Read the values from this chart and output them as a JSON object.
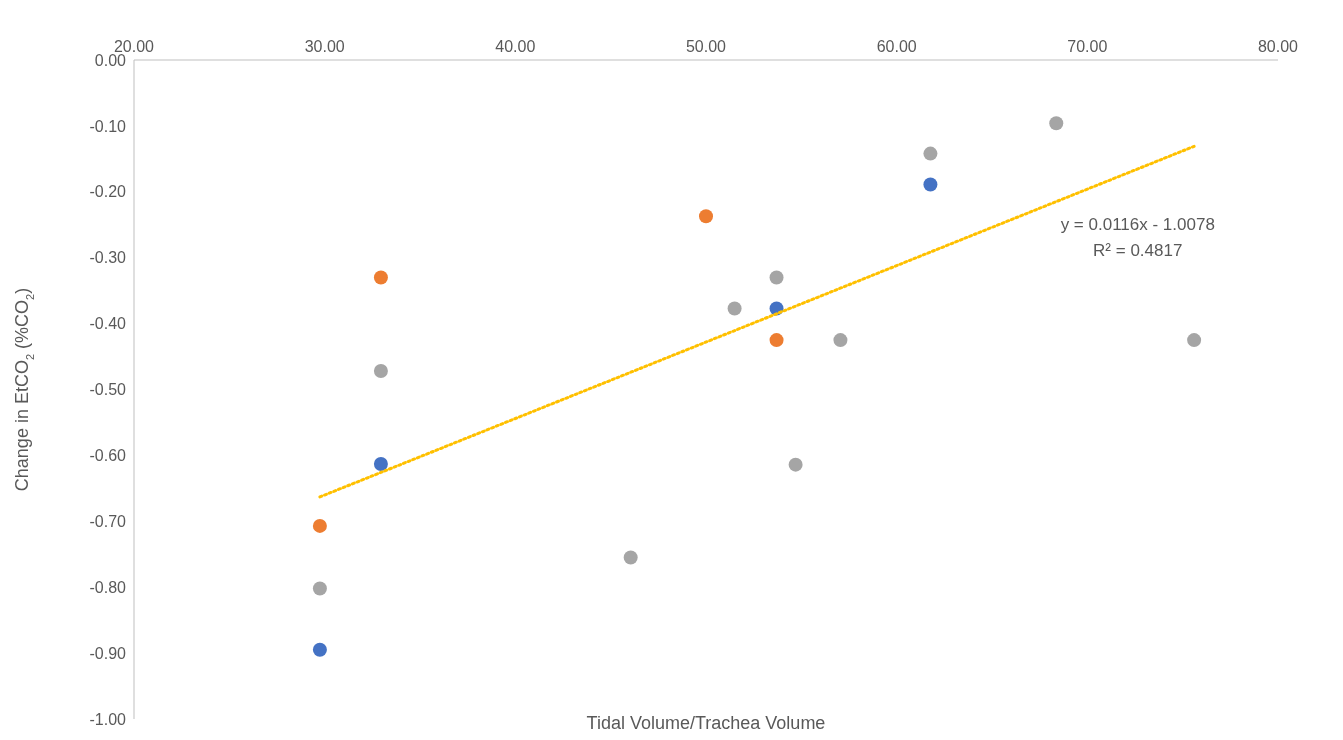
{
  "chart_data": {
    "type": "scatter",
    "xlabel": "Tidal Volume/Trachea Volume",
    "ylabel": "Change in EtCO$_{2}$ (%CO$_{2}$)",
    "xlim": [
      20,
      80
    ],
    "xticks": [
      {
        "value": 20,
        "label": "20.00"
      },
      {
        "value": 30,
        "label": "30.00"
      },
      {
        "value": 40,
        "label": "40.00"
      },
      {
        "value": 50,
        "label": "50.00"
      },
      {
        "value": 60,
        "label": "60.00"
      },
      {
        "value": 70,
        "label": "70.00"
      },
      {
        "value": 80,
        "label": "80.00"
      }
    ],
    "ylim": [
      -1,
      0
    ],
    "yticks": [
      {
        "value": 0,
        "label": "0.00"
      },
      {
        "value": -0.1,
        "label": "-0.10"
      },
      {
        "value": -0.2,
        "label": "-0.20"
      },
      {
        "value": -0.3,
        "label": "-0.30"
      },
      {
        "value": -0.4,
        "label": "-0.40"
      },
      {
        "value": -0.5,
        "label": "-0.50"
      },
      {
        "value": -0.6,
        "label": "-0.60"
      },
      {
        "value": -0.7,
        "label": "-0.70"
      },
      {
        "value": -0.8,
        "label": "-0.80"
      },
      {
        "value": -0.9,
        "label": "-0.90"
      },
      {
        "value": -1,
        "label": "-1.00"
      }
    ],
    "grid": false,
    "legend": false,
    "marker": "circle",
    "series": [
      {
        "color": "#4472c4",
        "x": [
          29.75,
          32.95,
          53.7,
          61.77
        ],
        "values": [
          -0.895,
          -0.613,
          -0.377,
          -0.189
        ]
      },
      {
        "color": "#ed7d31",
        "x": [
          29.75,
          32.95,
          50.0,
          53.7
        ],
        "values": [
          -0.707,
          -0.33,
          -0.237,
          -0.425
        ]
      },
      {
        "color": "#a5a5a5",
        "x": [
          29.75,
          32.95,
          46.05,
          51.5,
          53.7,
          54.7,
          57.05,
          61.77,
          68.37,
          75.6
        ],
        "values": [
          -0.802,
          -0.472,
          -0.755,
          -0.377,
          -0.33,
          -0.614,
          -0.425,
          -0.142,
          -0.096,
          -0.425
        ]
      },
      {
        "type": "line",
        "color": "#ffc000",
        "line_style": "dotted",
        "marker": "none",
        "x": [
          29.75,
          75.6
        ],
        "values": [
          -0.663,
          -0.131
        ]
      }
    ],
    "annotations": [
      "y = 0.0116x - 1.0078",
      "R² = 0.4817"
    ]
  }
}
